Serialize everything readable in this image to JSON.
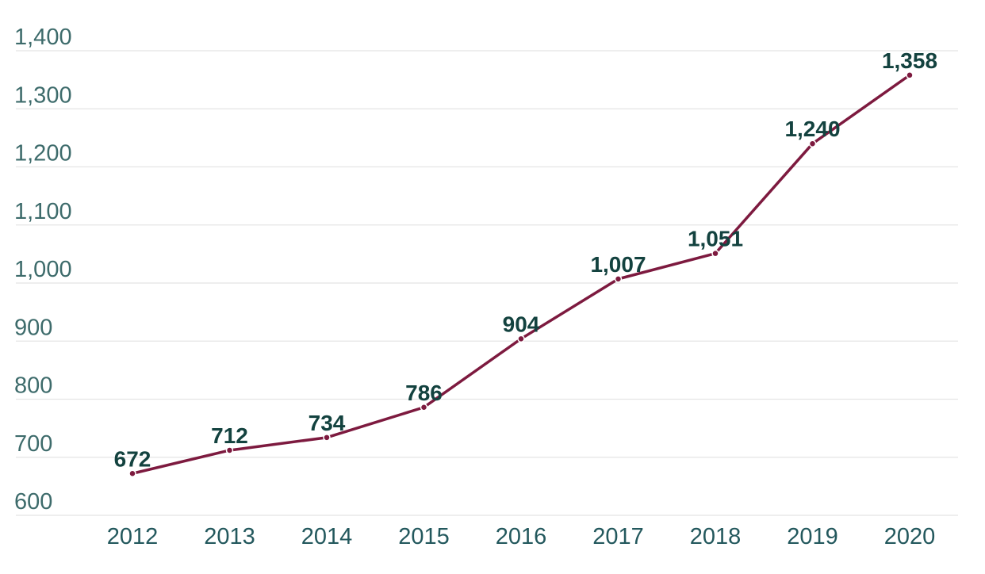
{
  "chart_data": {
    "type": "line",
    "title": "",
    "xlabel": "",
    "ylabel": "",
    "categories": [
      "2012",
      "2013",
      "2014",
      "2015",
      "2016",
      "2017",
      "2018",
      "2019",
      "2020"
    ],
    "values": [
      672,
      712,
      734,
      786,
      904,
      1007,
      1051,
      1240,
      1358
    ],
    "data_labels": [
      "672",
      "712",
      "734",
      "786",
      "904",
      "1,007",
      "1,051",
      "1,240",
      "1,358"
    ],
    "ylim": [
      600,
      1400
    ],
    "y_ticks": [
      600,
      700,
      800,
      900,
      1000,
      1100,
      1200,
      1300,
      1400
    ],
    "y_tick_labels": [
      "600",
      "700",
      "800",
      "900",
      "1,000",
      "1,100",
      "1,200",
      "1,300",
      "1,400"
    ],
    "grid": true,
    "legend": "none",
    "colors": {
      "line": "#7d1a3f",
      "point": "#7d1a3f"
    }
  }
}
